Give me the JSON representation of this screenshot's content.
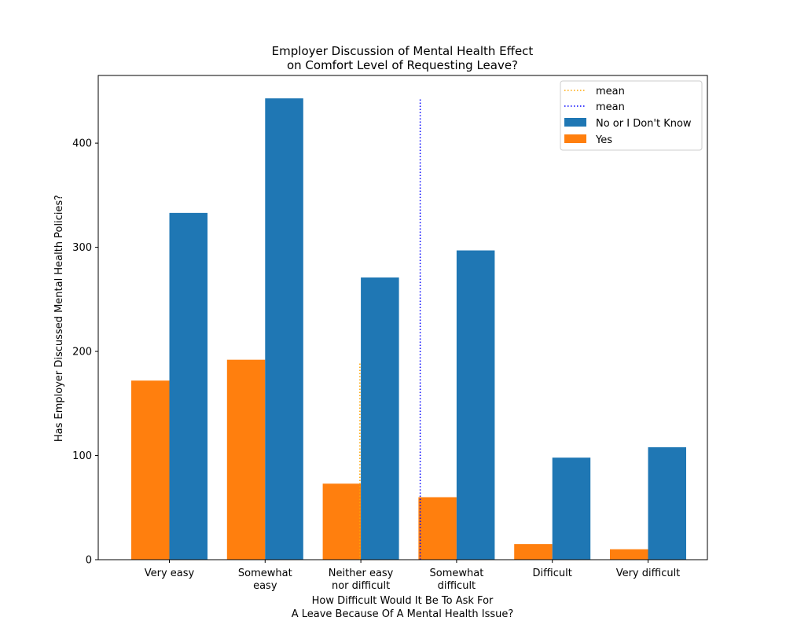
{
  "chart_data": {
    "type": "bar",
    "title": [
      "Employer Discussion of Mental Health Effect",
      "on Comfort Level of Requesting Leave?"
    ],
    "xlabel": [
      "How Difficult Would It Be To Ask For",
      "A Leave Because Of A Mental Health Issue?"
    ],
    "ylabel": "Has Employer Discussed Mental Health Policies?",
    "categories": [
      [
        "Very easy"
      ],
      [
        "Somewhat",
        "easy"
      ],
      [
        "Neither easy",
        "nor difficult"
      ],
      [
        "Somewhat",
        "difficult"
      ],
      [
        "Difficult"
      ],
      [
        "Very difficult"
      ]
    ],
    "ylim": [
      0,
      465
    ],
    "yticks": [
      0,
      100,
      200,
      300,
      400
    ],
    "grid": false,
    "legend_position": "upper right",
    "series": [
      {
        "name": "Yes",
        "color": "#ff7f0e",
        "values": [
          172,
          192,
          73,
          60,
          15,
          10
        ]
      },
      {
        "name": "No or I Don't Know",
        "color": "#1f77b4",
        "values": [
          333,
          443,
          271,
          297,
          98,
          108
        ]
      }
    ],
    "mean_lines": [
      {
        "name": "mean",
        "color": "#ffa500",
        "x_category_position": 1.99,
        "y_top": 190
      },
      {
        "name": "mean",
        "color": "#0000ff",
        "x_category_position": 2.62,
        "y_top": 443
      }
    ],
    "legend": [
      {
        "label": "mean",
        "kind": "line",
        "color": "#ffa500"
      },
      {
        "label": "mean",
        "kind": "line",
        "color": "#0000ff"
      },
      {
        "label": "No or I Don't Know",
        "kind": "patch",
        "color": "#1f77b4"
      },
      {
        "label": "Yes",
        "kind": "patch",
        "color": "#ff7f0e"
      }
    ]
  }
}
